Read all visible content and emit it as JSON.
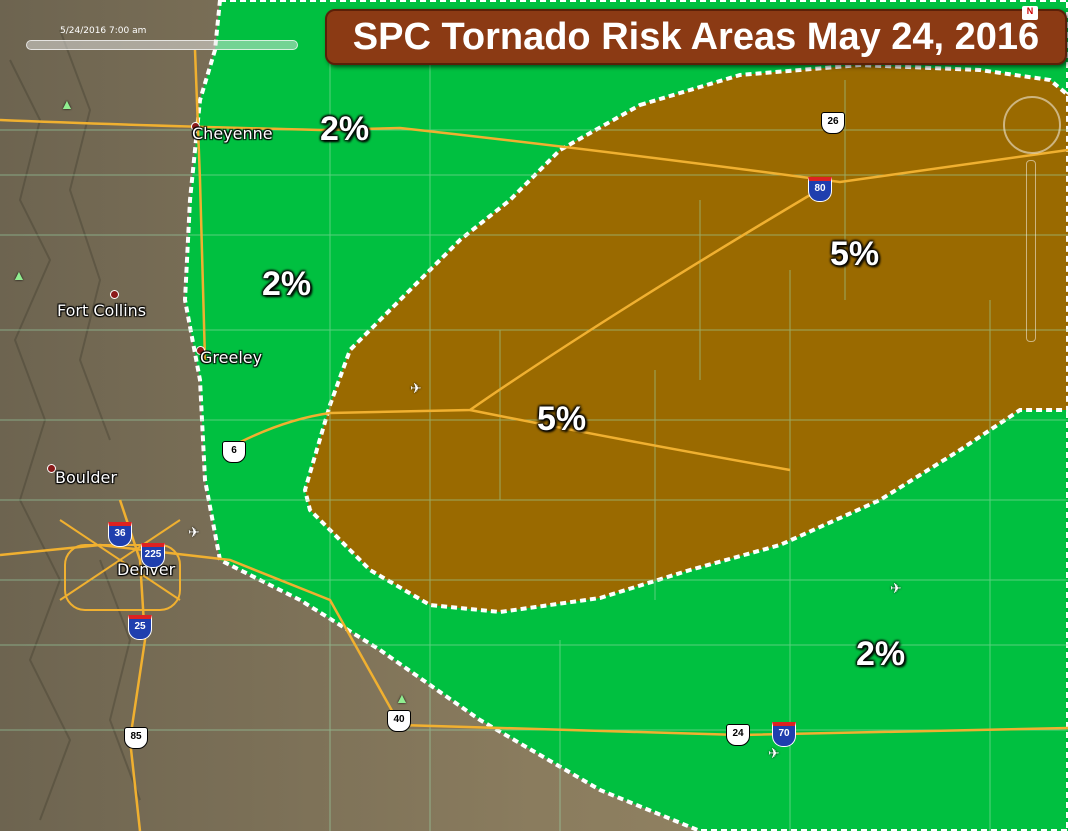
{
  "title": "SPC Tornado Risk Areas May 24, 2016",
  "timestamp": "5/24/2016   7:00 am",
  "north_indicator": "N",
  "cities": [
    {
      "name": "Cheyenne"
    },
    {
      "name": "Fort Collins"
    },
    {
      "name": "Greeley"
    },
    {
      "name": "Boulder"
    },
    {
      "name": "Denver"
    }
  ],
  "risk_areas": [
    {
      "label": "2%",
      "category": "2% tornado risk",
      "color": "#00c040"
    },
    {
      "label": "2%",
      "category": "2% tornado risk",
      "color": "#00c040"
    },
    {
      "label": "5%",
      "category": "5% tornado risk",
      "color": "#9a6a00"
    },
    {
      "label": "5%",
      "category": "5% tornado risk",
      "color": "#9a6a00"
    },
    {
      "label": "2%",
      "category": "2% tornado risk",
      "color": "#00c040"
    }
  ],
  "route_shields": [
    {
      "label": "26",
      "type": "us-route"
    },
    {
      "label": "80",
      "type": "interstate"
    },
    {
      "label": "6",
      "type": "us-route"
    },
    {
      "label": "36",
      "type": "interstate"
    },
    {
      "label": "225",
      "type": "interstate"
    },
    {
      "label": "25",
      "type": "interstate"
    },
    {
      "label": "85",
      "type": "us-route"
    },
    {
      "label": "40",
      "type": "us-route"
    },
    {
      "label": "24",
      "type": "us-route"
    },
    {
      "label": "70",
      "type": "interstate"
    }
  ],
  "colors": {
    "risk_2pct": "#00c040",
    "risk_5pct": "#9a6a00",
    "title_bg": "#8b3a14",
    "terrain": "#7a6f55",
    "road": "#f0b030",
    "outline": "#ffffff"
  },
  "icons": [
    "airport-icon",
    "park-icon",
    "compass-icon",
    "city-marker-icon"
  ]
}
